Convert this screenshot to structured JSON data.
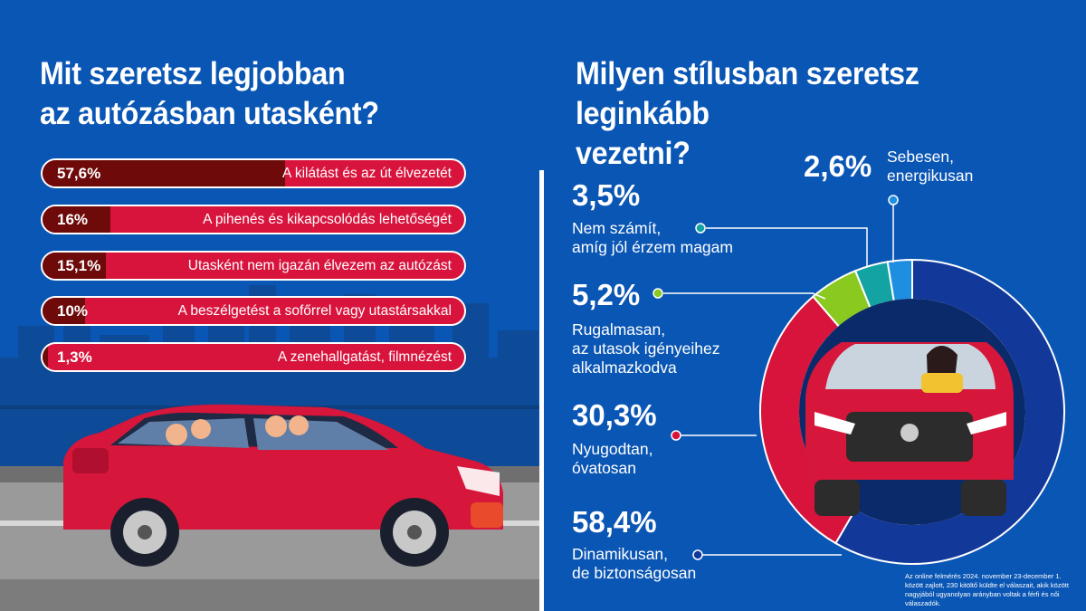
{
  "left": {
    "title_line1": "Mit szeretsz legjobban",
    "title_line2": "az autózásban utasként?"
  },
  "right": {
    "title_line1": "Milyen stílusban szeretsz leginkább",
    "title_line2": "vezetni?"
  },
  "footnote": "Az online felmérés 2024. november 23-december 1. között zajlott, 230 kitöltő küldte el válaszait, akik között nagyjából ugyanolyan arányban voltak a férfi és női válaszadók.",
  "colors": {
    "background": "#0a56b4",
    "bar_base": "#d8143d",
    "bar_fill": "#6e0a0a",
    "car_red": "#d6163a"
  },
  "chart_data": [
    {
      "type": "bar",
      "orientation": "horizontal",
      "categories": [
        "A kilátást és az út élvezetét",
        "A pihenés és kikapcsolódás lehetőségét",
        "Utasként nem igazán élvezem az autózást",
        "A beszélgetést a sofőrrel vagy utastársakkal",
        "A zenehallgatást, filmnézést"
      ],
      "values": [
        57.6,
        16,
        15.1,
        10,
        1.3
      ],
      "value_labels": [
        "57,6%",
        "16%",
        "15,1%",
        "10%",
        "1,3%"
      ],
      "unit": "%"
    },
    {
      "type": "pie",
      "style": "donut",
      "slices": [
        {
          "value_label": "58,4%",
          "value": 58.4,
          "label_line1": "Dinamikusan,",
          "label_line2": "de biztonságosan",
          "label_line3": "",
          "color": "#12389a"
        },
        {
          "value_label": "30,3%",
          "value": 30.3,
          "label_line1": "Nyugodtan,",
          "label_line2": "óvatosan",
          "label_line3": "",
          "color": "#d8143d"
        },
        {
          "value_label": "5,2%",
          "value": 5.2,
          "label_line1": "Rugalmasan,",
          "label_line2": "az utasok igényeihez",
          "label_line3": "alkalmazkodva",
          "color": "#8ac920"
        },
        {
          "value_label": "3,5%",
          "value": 3.5,
          "label_line1": "Nem számít,",
          "label_line2": "amíg jól érzem magam",
          "label_line3": "",
          "color": "#14a3a3"
        },
        {
          "value_label": "2,6%",
          "value": 2.6,
          "label_line1": "Sebesen,",
          "label_line2": "energikusan",
          "label_line3": "",
          "color": "#1e8ee0"
        }
      ],
      "unit": "%"
    }
  ]
}
